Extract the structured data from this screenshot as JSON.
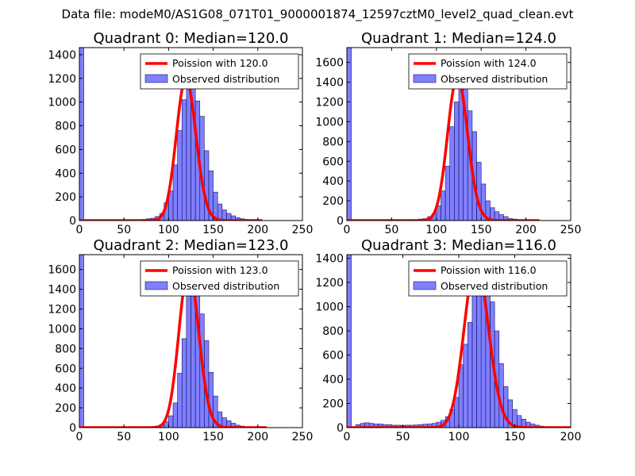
{
  "page_title": "Data file: modeM0/AS1G08_071T01_9000001874_12597cztM0_level2_quad_clean.evt",
  "chart_data": [
    {
      "type": "bar+line",
      "title": "Quadrant 0: Median=120.0",
      "median": 120.0,
      "xlim": [
        0,
        250
      ],
      "ylim": [
        0,
        1460
      ],
      "xticks": [
        0,
        50,
        100,
        150,
        200,
        250
      ],
      "yticks": [
        0,
        200,
        400,
        600,
        800,
        1000,
        1200,
        1400
      ],
      "legend_line": "Poission with 120.0",
      "legend_bar": "Observed distribution",
      "poisson_xmax": 205,
      "bin_width": 5,
      "bins": [
        [
          0,
          1460
        ],
        [
          65,
          5
        ],
        [
          70,
          10
        ],
        [
          75,
          15
        ],
        [
          80,
          20
        ],
        [
          85,
          35
        ],
        [
          90,
          60
        ],
        [
          95,
          150
        ],
        [
          100,
          250
        ],
        [
          105,
          470
        ],
        [
          110,
          760
        ],
        [
          115,
          1020
        ],
        [
          120,
          1200
        ],
        [
          125,
          1140
        ],
        [
          130,
          1010
        ],
        [
          135,
          880
        ],
        [
          140,
          590
        ],
        [
          145,
          420
        ],
        [
          150,
          240
        ],
        [
          155,
          140
        ],
        [
          160,
          90
        ],
        [
          165,
          60
        ],
        [
          170,
          40
        ],
        [
          175,
          25
        ],
        [
          180,
          15
        ],
        [
          185,
          10
        ],
        [
          190,
          6
        ],
        [
          195,
          4
        ],
        [
          200,
          3
        ]
      ]
    },
    {
      "type": "bar+line",
      "title": "Quadrant 1: Median=124.0",
      "median": 124.0,
      "xlim": [
        0,
        250
      ],
      "ylim": [
        0,
        1750
      ],
      "xticks": [
        0,
        50,
        100,
        150,
        200,
        250
      ],
      "yticks": [
        0,
        200,
        400,
        600,
        800,
        1000,
        1200,
        1400,
        1600
      ],
      "legend_line": "Poission with 124.0",
      "legend_bar": "Observed distribution",
      "poisson_xmax": 215,
      "bin_width": 5,
      "bins": [
        [
          0,
          1750
        ],
        [
          70,
          5
        ],
        [
          75,
          10
        ],
        [
          80,
          15
        ],
        [
          85,
          20
        ],
        [
          90,
          40
        ],
        [
          95,
          70
        ],
        [
          100,
          150
        ],
        [
          105,
          300
        ],
        [
          110,
          550
        ],
        [
          115,
          950
        ],
        [
          120,
          1200
        ],
        [
          125,
          1450
        ],
        [
          130,
          1400
        ],
        [
          135,
          1110
        ],
        [
          140,
          900
        ],
        [
          145,
          590
        ],
        [
          150,
          370
        ],
        [
          155,
          200
        ],
        [
          160,
          130
        ],
        [
          165,
          90
        ],
        [
          170,
          60
        ],
        [
          175,
          40
        ],
        [
          180,
          20
        ],
        [
          185,
          15
        ],
        [
          190,
          10
        ],
        [
          195,
          5
        ]
      ]
    },
    {
      "type": "bar+line",
      "title": "Quadrant 2: Median=123.0",
      "median": 123.0,
      "xlim": [
        0,
        250
      ],
      "ylim": [
        0,
        1750
      ],
      "xticks": [
        0,
        50,
        100,
        150,
        200,
        250
      ],
      "yticks": [
        0,
        200,
        400,
        600,
        800,
        1000,
        1200,
        1400,
        1600
      ],
      "legend_line": "Poission with 123.0",
      "legend_bar": "Observed distribution",
      "poisson_xmax": 210,
      "bin_width": 5,
      "bins": [
        [
          0,
          1750
        ],
        [
          75,
          5
        ],
        [
          80,
          10
        ],
        [
          85,
          15
        ],
        [
          90,
          30
        ],
        [
          95,
          60
        ],
        [
          100,
          120
        ],
        [
          105,
          250
        ],
        [
          110,
          550
        ],
        [
          115,
          900
        ],
        [
          120,
          1350
        ],
        [
          125,
          1600
        ],
        [
          130,
          1530
        ],
        [
          135,
          1150
        ],
        [
          140,
          880
        ],
        [
          145,
          560
        ],
        [
          150,
          320
        ],
        [
          155,
          160
        ],
        [
          160,
          100
        ],
        [
          165,
          70
        ],
        [
          170,
          45
        ],
        [
          175,
          25
        ],
        [
          180,
          15
        ],
        [
          185,
          8
        ],
        [
          190,
          5
        ]
      ]
    },
    {
      "type": "bar+line",
      "title": "Quadrant 3: Median=116.0",
      "median": 116.0,
      "xlim": [
        0,
        200
      ],
      "ylim": [
        0,
        1430
      ],
      "xticks": [
        0,
        50,
        100,
        150,
        200
      ],
      "yticks": [
        0,
        200,
        400,
        600,
        800,
        1000,
        1200,
        1400
      ],
      "legend_line": "Poission with 116.0",
      "legend_bar": "Observed distribution",
      "poisson_xmax": 200,
      "bin_width": 4,
      "bins": [
        [
          0,
          1430
        ],
        [
          8,
          25
        ],
        [
          12,
          35
        ],
        [
          16,
          40
        ],
        [
          20,
          35
        ],
        [
          24,
          30
        ],
        [
          28,
          30
        ],
        [
          32,
          25
        ],
        [
          36,
          25
        ],
        [
          40,
          20
        ],
        [
          44,
          20
        ],
        [
          48,
          18
        ],
        [
          52,
          20
        ],
        [
          56,
          20
        ],
        [
          60,
          22
        ],
        [
          64,
          25
        ],
        [
          68,
          28
        ],
        [
          72,
          30
        ],
        [
          76,
          35
        ],
        [
          80,
          45
        ],
        [
          84,
          60
        ],
        [
          88,
          90
        ],
        [
          92,
          150
        ],
        [
          96,
          250
        ],
        [
          100,
          520
        ],
        [
          104,
          690
        ],
        [
          108,
          870
        ],
        [
          112,
          1200
        ],
        [
          116,
          1310
        ],
        [
          120,
          1370
        ],
        [
          124,
          1240
        ],
        [
          128,
          1040
        ],
        [
          132,
          800
        ],
        [
          136,
          530
        ],
        [
          140,
          340
        ],
        [
          144,
          230
        ],
        [
          148,
          150
        ],
        [
          152,
          100
        ],
        [
          156,
          70
        ],
        [
          160,
          45
        ],
        [
          164,
          30
        ],
        [
          168,
          20
        ],
        [
          172,
          12
        ],
        [
          176,
          6
        ]
      ]
    }
  ]
}
